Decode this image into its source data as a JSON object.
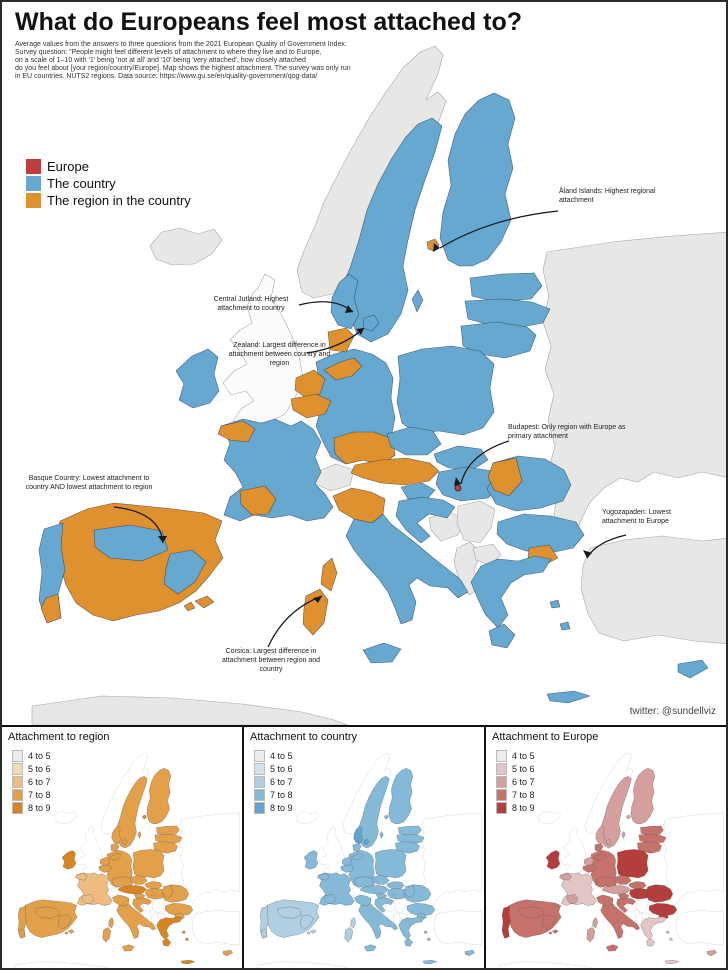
{
  "header": {
    "title": "What do Europeans feel most attached to?",
    "subtitle_lines": [
      "Average values from the answers to three questions from the 2021 European Quality of Government Index.",
      "Survey question: \"People might feel different levels of attachment to where they live and to Europe,",
      "on a scale of 1–10 with '1' being 'not at all' and '10' being 'very attached', how closely attached",
      "do you feel about [your region/country/Europe]. Map shows the highest attachment. The survey was only run",
      "in EU countries. NUTS2 regions. Data source: https://www.gu.se/en/quality-government/qog-data/"
    ]
  },
  "legend": {
    "items": [
      {
        "label": "Europe",
        "color": "#bf3e3b"
      },
      {
        "label": "The country",
        "color": "#66a8d0"
      },
      {
        "label": "The region in the country",
        "color": "#e0912f"
      }
    ]
  },
  "annotations": {
    "aland": {
      "text": "Åland Islands: Highest regional attachment"
    },
    "central_jutland": {
      "text": "Central Jutland: Highest attachment to country"
    },
    "zealand": {
      "text": "Zealand: Largest difference in attachment between country and region"
    },
    "budapest": {
      "text": "Budapest: Only region with Europe as primary attachment"
    },
    "basque": {
      "text": "Basque Country: Lowest attachment to country AND lowest attachment to region"
    },
    "yugozapaden": {
      "text": "Yugozapaden: Lowest attachment to Europe"
    },
    "corsica": {
      "text": "Corsica: Largest difference in attachment between region and country"
    }
  },
  "credit": "twitter:  @sundellviz",
  "colors": {
    "country_blue": "#66a8d0",
    "region_orange": "#e0912f",
    "europe_red": "#bf3e3b",
    "non_eu_grey": "#e7e7e5",
    "non_eu_outline_white": "#fcfcfc",
    "sea": "#ffffff"
  },
  "panels": [
    {
      "title": "Attachment to region",
      "bins": [
        "4 to 5",
        "5 to 6",
        "6 to 7",
        "7 to 8",
        "8 to 9"
      ],
      "palette": [
        "#ececec",
        "#f3d9b5",
        "#edbc7e",
        "#e2a04a",
        "#d98422"
      ]
    },
    {
      "title": "Attachment to country",
      "bins": [
        "4 to 5",
        "5 to 6",
        "6 to 7",
        "7 to 8",
        "8 to 9"
      ],
      "palette": [
        "#ececec",
        "#d4e2ec",
        "#b0cfe2",
        "#85b9d8",
        "#62a6cf"
      ]
    },
    {
      "title": "Attachment to Europe",
      "bins": [
        "4 to 5",
        "5 to 6",
        "6 to 7",
        "7 to 8",
        "8 to 9"
      ],
      "palette": [
        "#ececec",
        "#e2c6c5",
        "#d49f9c",
        "#c5716c",
        "#b43e3b"
      ]
    }
  ]
}
